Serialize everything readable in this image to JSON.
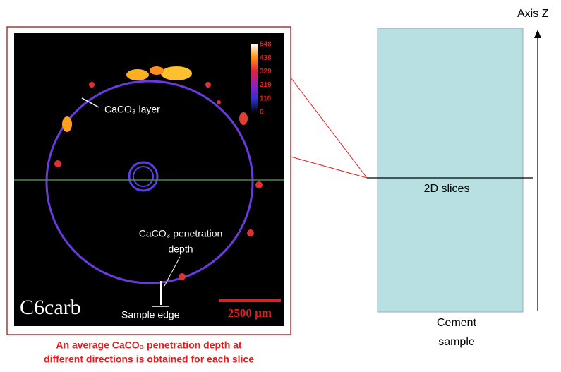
{
  "image": {
    "colorbar_labels": [
      548,
      438,
      329,
      219,
      110,
      0
    ],
    "layer_label": "CaCO₃ layer",
    "depth_label": [
      "CaCO₃ penetration",
      "depth"
    ],
    "sample_name": "C6carb",
    "scale_bar": "2500 µm",
    "edge_label": "Sample edge"
  },
  "caption": [
    "An average CaCO₃ penetration depth at",
    "different directions is obtained for each slice"
  ],
  "sample": {
    "axis_label": "Axis Z",
    "slice_label": "2D slices",
    "name": [
      "Cement",
      "sample"
    ]
  }
}
